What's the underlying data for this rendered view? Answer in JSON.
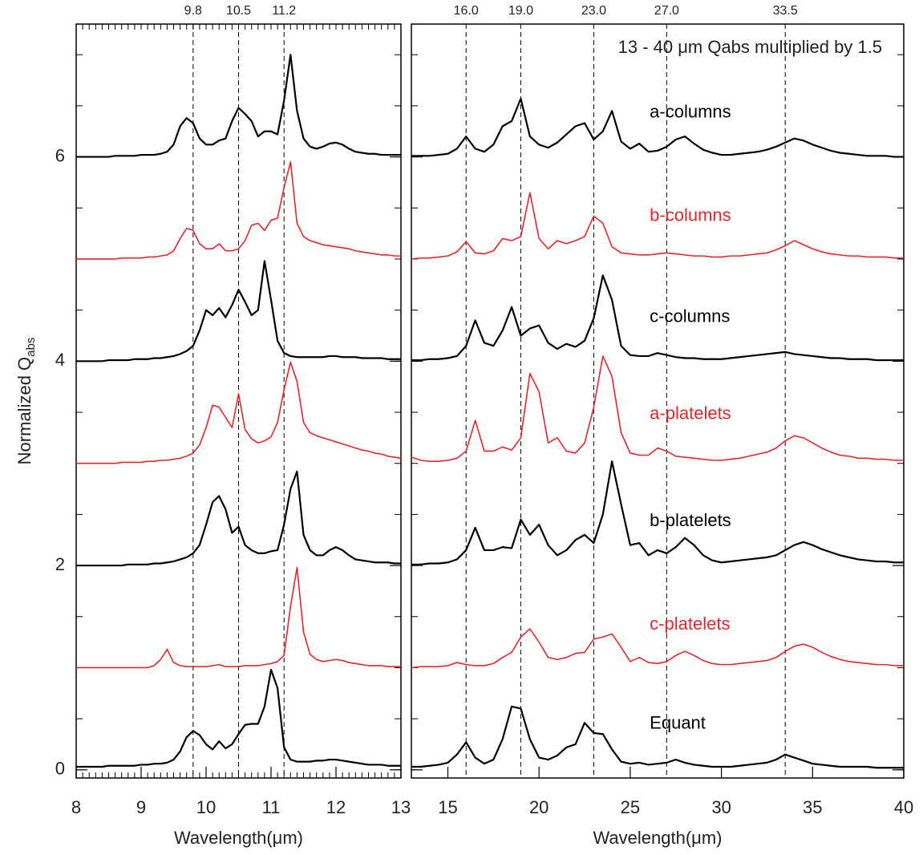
{
  "chart_data": [
    {
      "type": "line",
      "xlabel": "Wavelength(μm)",
      "ylabel": {
        "text": "Normalized Q",
        "sub": "abs"
      },
      "xlim": [
        8,
        13
      ],
      "ylim": [
        -0.08,
        7.3
      ],
      "xticks": [
        8,
        9,
        10,
        11,
        12,
        13
      ],
      "yticks": [
        0,
        2,
        4,
        6
      ],
      "xminor": 0.1,
      "yminor": 0.5,
      "ytick_labels": true,
      "vlines": [
        9.8,
        10.5,
        11.2
      ],
      "x": [
        8,
        8.1,
        8.2,
        8.3,
        8.4,
        8.5,
        8.6,
        8.7,
        8.8,
        8.9,
        9,
        9.1,
        9.2,
        9.3,
        9.4,
        9.5,
        9.6,
        9.7,
        9.8,
        9.9,
        10,
        10.1,
        10.2,
        10.3,
        10.4,
        10.5,
        10.6,
        10.7,
        10.8,
        10.9,
        11,
        11.1,
        11.2,
        11.3,
        11.4,
        11.5,
        11.6,
        11.7,
        11.8,
        11.9,
        12,
        12.1,
        12.2,
        12.3,
        12.4,
        12.5,
        12.6,
        12.7,
        12.8,
        12.9,
        13
      ],
      "series": [
        {
          "color": "#000000",
          "values": [
            6,
            6,
            6,
            6,
            6,
            6,
            6.01,
            6.01,
            6.01,
            6.01,
            6.02,
            6.02,
            6.02,
            6.03,
            6.05,
            6.12,
            6.3,
            6.38,
            6.33,
            6.18,
            6.12,
            6.12,
            6.16,
            6.18,
            6.35,
            6.48,
            6.42,
            6.35,
            6.2,
            6.25,
            6.25,
            6.22,
            6.55,
            7,
            6.45,
            6.18,
            6.1,
            6.08,
            6.1,
            6.13,
            6.14,
            6.12,
            6.08,
            6.05,
            6.04,
            6.03,
            6.03,
            6.02,
            6.02,
            6.02,
            6.02
          ]
        },
        {
          "color": "#e8262a",
          "values": [
            5,
            5,
            5,
            5,
            5,
            5,
            5,
            5.01,
            5.01,
            5.01,
            5.01,
            5.02,
            5.02,
            5.03,
            5.04,
            5.08,
            5.2,
            5.3,
            5.28,
            5.15,
            5.1,
            5.1,
            5.15,
            5.08,
            5.08,
            5.1,
            5.18,
            5.33,
            5.35,
            5.28,
            5.38,
            5.4,
            5.7,
            5.95,
            5.35,
            5.22,
            5.18,
            5.16,
            5.14,
            5.13,
            5.12,
            5.11,
            5.1,
            5.08,
            5.07,
            5.06,
            5.05,
            5.04,
            5.04,
            5.03,
            5.03
          ]
        },
        {
          "color": "#000000",
          "values": [
            4,
            4,
            4,
            4,
            4,
            4.01,
            4.01,
            4.01,
            4.01,
            4.02,
            4.02,
            4.02,
            4.03,
            4.03,
            4.04,
            4.05,
            4.07,
            4.1,
            4.15,
            4.3,
            4.5,
            4.45,
            4.52,
            4.43,
            4.55,
            4.7,
            4.58,
            4.45,
            4.5,
            4.98,
            4.6,
            4.2,
            4.08,
            4.05,
            4.04,
            4.04,
            4.04,
            4.04,
            4.04,
            4.05,
            4.05,
            4.04,
            4.04,
            4.04,
            4.03,
            4.03,
            4.03,
            4.03,
            4.02,
            4.02,
            4.02
          ]
        },
        {
          "color": "#e8262a",
          "values": [
            3,
            3,
            3,
            3,
            3,
            3,
            3,
            3.01,
            3.01,
            3.01,
            3.01,
            3.02,
            3.02,
            3.03,
            3.03,
            3.04,
            3.05,
            3.07,
            3.1,
            3.18,
            3.35,
            3.57,
            3.55,
            3.45,
            3.35,
            3.68,
            3.33,
            3.24,
            3.2,
            3.22,
            3.26,
            3.4,
            3.72,
            3.99,
            3.8,
            3.4,
            3.3,
            3.27,
            3.25,
            3.23,
            3.21,
            3.19,
            3.17,
            3.15,
            3.13,
            3.12,
            3.1,
            3.09,
            3.07,
            3.06,
            3.05
          ]
        },
        {
          "color": "#000000",
          "values": [
            2,
            2,
            2,
            2,
            2,
            2,
            2,
            2,
            2.01,
            2.01,
            2.01,
            2.01,
            2.02,
            2.02,
            2.03,
            2.04,
            2.06,
            2.08,
            2.12,
            2.2,
            2.4,
            2.62,
            2.68,
            2.55,
            2.32,
            2.38,
            2.2,
            2.15,
            2.12,
            2.12,
            2.14,
            2.15,
            2.4,
            2.75,
            2.92,
            2.3,
            2.15,
            2.1,
            2.1,
            2.15,
            2.18,
            2.15,
            2.1,
            2.06,
            2.05,
            2.04,
            2.03,
            2.03,
            2.03,
            2.02,
            2.02
          ]
        },
        {
          "color": "#e8262a",
          "values": [
            1,
            1,
            1,
            1,
            1,
            1,
            1,
            1,
            1,
            1,
            1,
            1,
            1.02,
            1.08,
            1.18,
            1.05,
            1.02,
            1.01,
            1.01,
            1.01,
            1.01,
            1.02,
            1.03,
            1.01,
            1.01,
            1.01,
            1.02,
            1.02,
            1.02,
            1.03,
            1.04,
            1.06,
            1.12,
            1.6,
            1.98,
            1.35,
            1.13,
            1.08,
            1.06,
            1.07,
            1.08,
            1.07,
            1.05,
            1.04,
            1.03,
            1.02,
            1.02,
            1.02,
            1.01,
            1.01,
            1.01
          ]
        },
        {
          "color": "#000000",
          "values": [
            0.03,
            0.03,
            0.03,
            0.03,
            0.03,
            0.04,
            0.04,
            0.04,
            0.04,
            0.04,
            0.05,
            0.05,
            0.06,
            0.06,
            0.07,
            0.1,
            0.18,
            0.32,
            0.38,
            0.34,
            0.25,
            0.2,
            0.28,
            0.21,
            0.25,
            0.35,
            0.44,
            0.45,
            0.45,
            0.62,
            0.98,
            0.8,
            0.22,
            0.1,
            0.08,
            0.08,
            0.08,
            0.09,
            0.09,
            0.1,
            0.1,
            0.09,
            0.08,
            0.07,
            0.06,
            0.05,
            0.05,
            0.05,
            0.04,
            0.04,
            0.04
          ]
        }
      ]
    },
    {
      "type": "line",
      "xlabel": "Wavelength(μm)",
      "annotation": "13 - 40 μm Qabs multiplied by 1.5",
      "xlim": [
        13,
        40
      ],
      "ylim": [
        -0.08,
        7.3
      ],
      "xticks": [
        15,
        20,
        25,
        30,
        35,
        40
      ],
      "yticks": [
        0,
        2,
        4,
        6
      ],
      "yminor": 0.5,
      "ytick_labels": false,
      "vlines": [
        {
          "value": 16,
          "label": "16.0"
        },
        {
          "value": 19,
          "label": "19.0"
        },
        {
          "value": 23,
          "label": "23.0"
        },
        {
          "value": 27,
          "label": "27.0"
        },
        33.5
      ],
      "x": [
        13,
        13.5,
        14,
        14.5,
        15,
        15.5,
        16,
        16.5,
        17,
        17.5,
        18,
        18.5,
        19,
        19.5,
        20,
        20.5,
        21,
        21.5,
        22,
        22.5,
        23,
        23.5,
        24,
        24.5,
        25,
        25.5,
        26,
        26.5,
        27,
        27.5,
        28,
        28.5,
        29,
        29.5,
        30,
        30.5,
        31,
        31.5,
        32,
        32.5,
        33,
        33.5,
        34,
        34.5,
        35,
        35.5,
        36,
        36.5,
        37,
        37.5,
        38,
        38.5,
        39,
        39.5,
        40
      ],
      "series": [
        {
          "name": "a-columns",
          "color": "#000000",
          "values": [
            6.01,
            6.01,
            6.01,
            6.02,
            6.03,
            6.08,
            6.2,
            6.08,
            6.05,
            6.12,
            6.3,
            6.35,
            6.57,
            6.2,
            6.12,
            6.09,
            6.14,
            6.22,
            6.3,
            6.33,
            6.17,
            6.25,
            6.45,
            6.15,
            6.08,
            6.13,
            6.05,
            6.06,
            6.1,
            6.17,
            6.2,
            6.13,
            6.07,
            6.04,
            6.02,
            6.02,
            6.03,
            6.04,
            6.05,
            6.07,
            6.1,
            6.14,
            6.18,
            6.16,
            6.12,
            6.09,
            6.06,
            6.04,
            6.03,
            6.02,
            6.01,
            6.01,
            6.01,
            6,
            6
          ]
        },
        {
          "name": "b-columns",
          "color": "#e8262a",
          "values": [
            5,
            5.01,
            5.01,
            5.02,
            5.03,
            5.07,
            5.17,
            5.06,
            5.05,
            5.08,
            5.2,
            5.18,
            5.22,
            5.65,
            5.2,
            5.1,
            5.18,
            5.15,
            5.18,
            5.22,
            5.42,
            5.35,
            5.12,
            5.06,
            5.05,
            5.04,
            5.04,
            5.05,
            5.06,
            5.05,
            5.04,
            5.03,
            5.03,
            5.02,
            5.02,
            5.03,
            5.03,
            5.04,
            5.05,
            5.06,
            5.09,
            5.13,
            5.18,
            5.14,
            5.1,
            5.07,
            5.05,
            5.04,
            5.03,
            5.03,
            5.02,
            5.02,
            5.02,
            5.01,
            5.01
          ]
        },
        {
          "name": "c-columns",
          "color": "#000000",
          "values": [
            4.01,
            4.01,
            4.02,
            4.02,
            4.03,
            4.05,
            4.15,
            4.4,
            4.18,
            4.15,
            4.3,
            4.53,
            4.25,
            4.32,
            4.35,
            4.18,
            4.12,
            4.17,
            4.14,
            4.2,
            4.42,
            4.84,
            4.6,
            4.15,
            4.06,
            4.05,
            4.05,
            4.08,
            4.06,
            4.04,
            4.03,
            4.03,
            4.02,
            4.02,
            4.02,
            4.03,
            4.04,
            4.05,
            4.06,
            4.07,
            4.08,
            4.09,
            4.07,
            4.06,
            4.05,
            4.04,
            4.03,
            4.03,
            4.02,
            4.02,
            4.02,
            4.01,
            4.01,
            4.01,
            4.01
          ]
        },
        {
          "name": "a-platelets",
          "color": "#e8262a",
          "values": [
            3.06,
            3.03,
            3.02,
            3.02,
            3.03,
            3.05,
            3.12,
            3.42,
            3.12,
            3.12,
            3.16,
            3.13,
            3.25,
            3.88,
            3.7,
            3.2,
            3.25,
            3.12,
            3.1,
            3.2,
            3.55,
            4.05,
            3.85,
            3.3,
            3.1,
            3.08,
            3.08,
            3.15,
            3.12,
            3.07,
            3.06,
            3.05,
            3.04,
            3.03,
            3.03,
            3.04,
            3.05,
            3.07,
            3.09,
            3.11,
            3.15,
            3.22,
            3.27,
            3.25,
            3.2,
            3.15,
            3.11,
            3.08,
            3.07,
            3.05,
            3.05,
            3.04,
            3.04,
            3.03,
            3.03
          ]
        },
        {
          "name": "b-platelets",
          "color": "#000000",
          "values": [
            2.01,
            2.01,
            2.02,
            2.02,
            2.03,
            2.06,
            2.15,
            2.37,
            2.15,
            2.15,
            2.18,
            2.17,
            2.45,
            2.3,
            2.4,
            2.2,
            2.1,
            2.15,
            2.25,
            2.3,
            2.22,
            2.5,
            3.02,
            2.6,
            2.2,
            2.22,
            2.1,
            2.15,
            2.12,
            2.18,
            2.27,
            2.2,
            2.1,
            2.05,
            2.03,
            2.04,
            2.05,
            2.06,
            2.07,
            2.08,
            2.1,
            2.15,
            2.2,
            2.23,
            2.2,
            2.16,
            2.13,
            2.1,
            2.08,
            2.06,
            2.05,
            2.04,
            2.04,
            2.03,
            2.03
          ]
        },
        {
          "name": "c-platelets",
          "color": "#e8262a",
          "values": [
            1,
            1.01,
            1.01,
            1.01,
            1.02,
            1.05,
            1.03,
            1.02,
            1.02,
            1.04,
            1.1,
            1.15,
            1.3,
            1.38,
            1.25,
            1.1,
            1.08,
            1.1,
            1.14,
            1.15,
            1.28,
            1.3,
            1.33,
            1.2,
            1.06,
            1.1,
            1.05,
            1.04,
            1.06,
            1.12,
            1.16,
            1.12,
            1.07,
            1.04,
            1.03,
            1.03,
            1.04,
            1.05,
            1.06,
            1.07,
            1.1,
            1.16,
            1.21,
            1.23,
            1.2,
            1.15,
            1.11,
            1.08,
            1.06,
            1.05,
            1.04,
            1.03,
            1.03,
            1.02,
            1.02
          ]
        },
        {
          "name": "Equant",
          "color": "#000000",
          "values": [
            0.03,
            0.03,
            0.04,
            0.05,
            0.07,
            0.15,
            0.27,
            0.12,
            0.06,
            0.1,
            0.3,
            0.62,
            0.6,
            0.3,
            0.12,
            0.1,
            0.14,
            0.22,
            0.25,
            0.46,
            0.36,
            0.35,
            0.2,
            0.08,
            0.06,
            0.07,
            0.05,
            0.06,
            0.07,
            0.1,
            0.07,
            0.05,
            0.04,
            0.03,
            0.03,
            0.03,
            0.04,
            0.05,
            0.06,
            0.07,
            0.1,
            0.15,
            0.12,
            0.09,
            0.06,
            0.05,
            0.04,
            0.03,
            0.03,
            0.03,
            0.03,
            0.02,
            0.02,
            0.02,
            0.02
          ]
        }
      ]
    }
  ]
}
